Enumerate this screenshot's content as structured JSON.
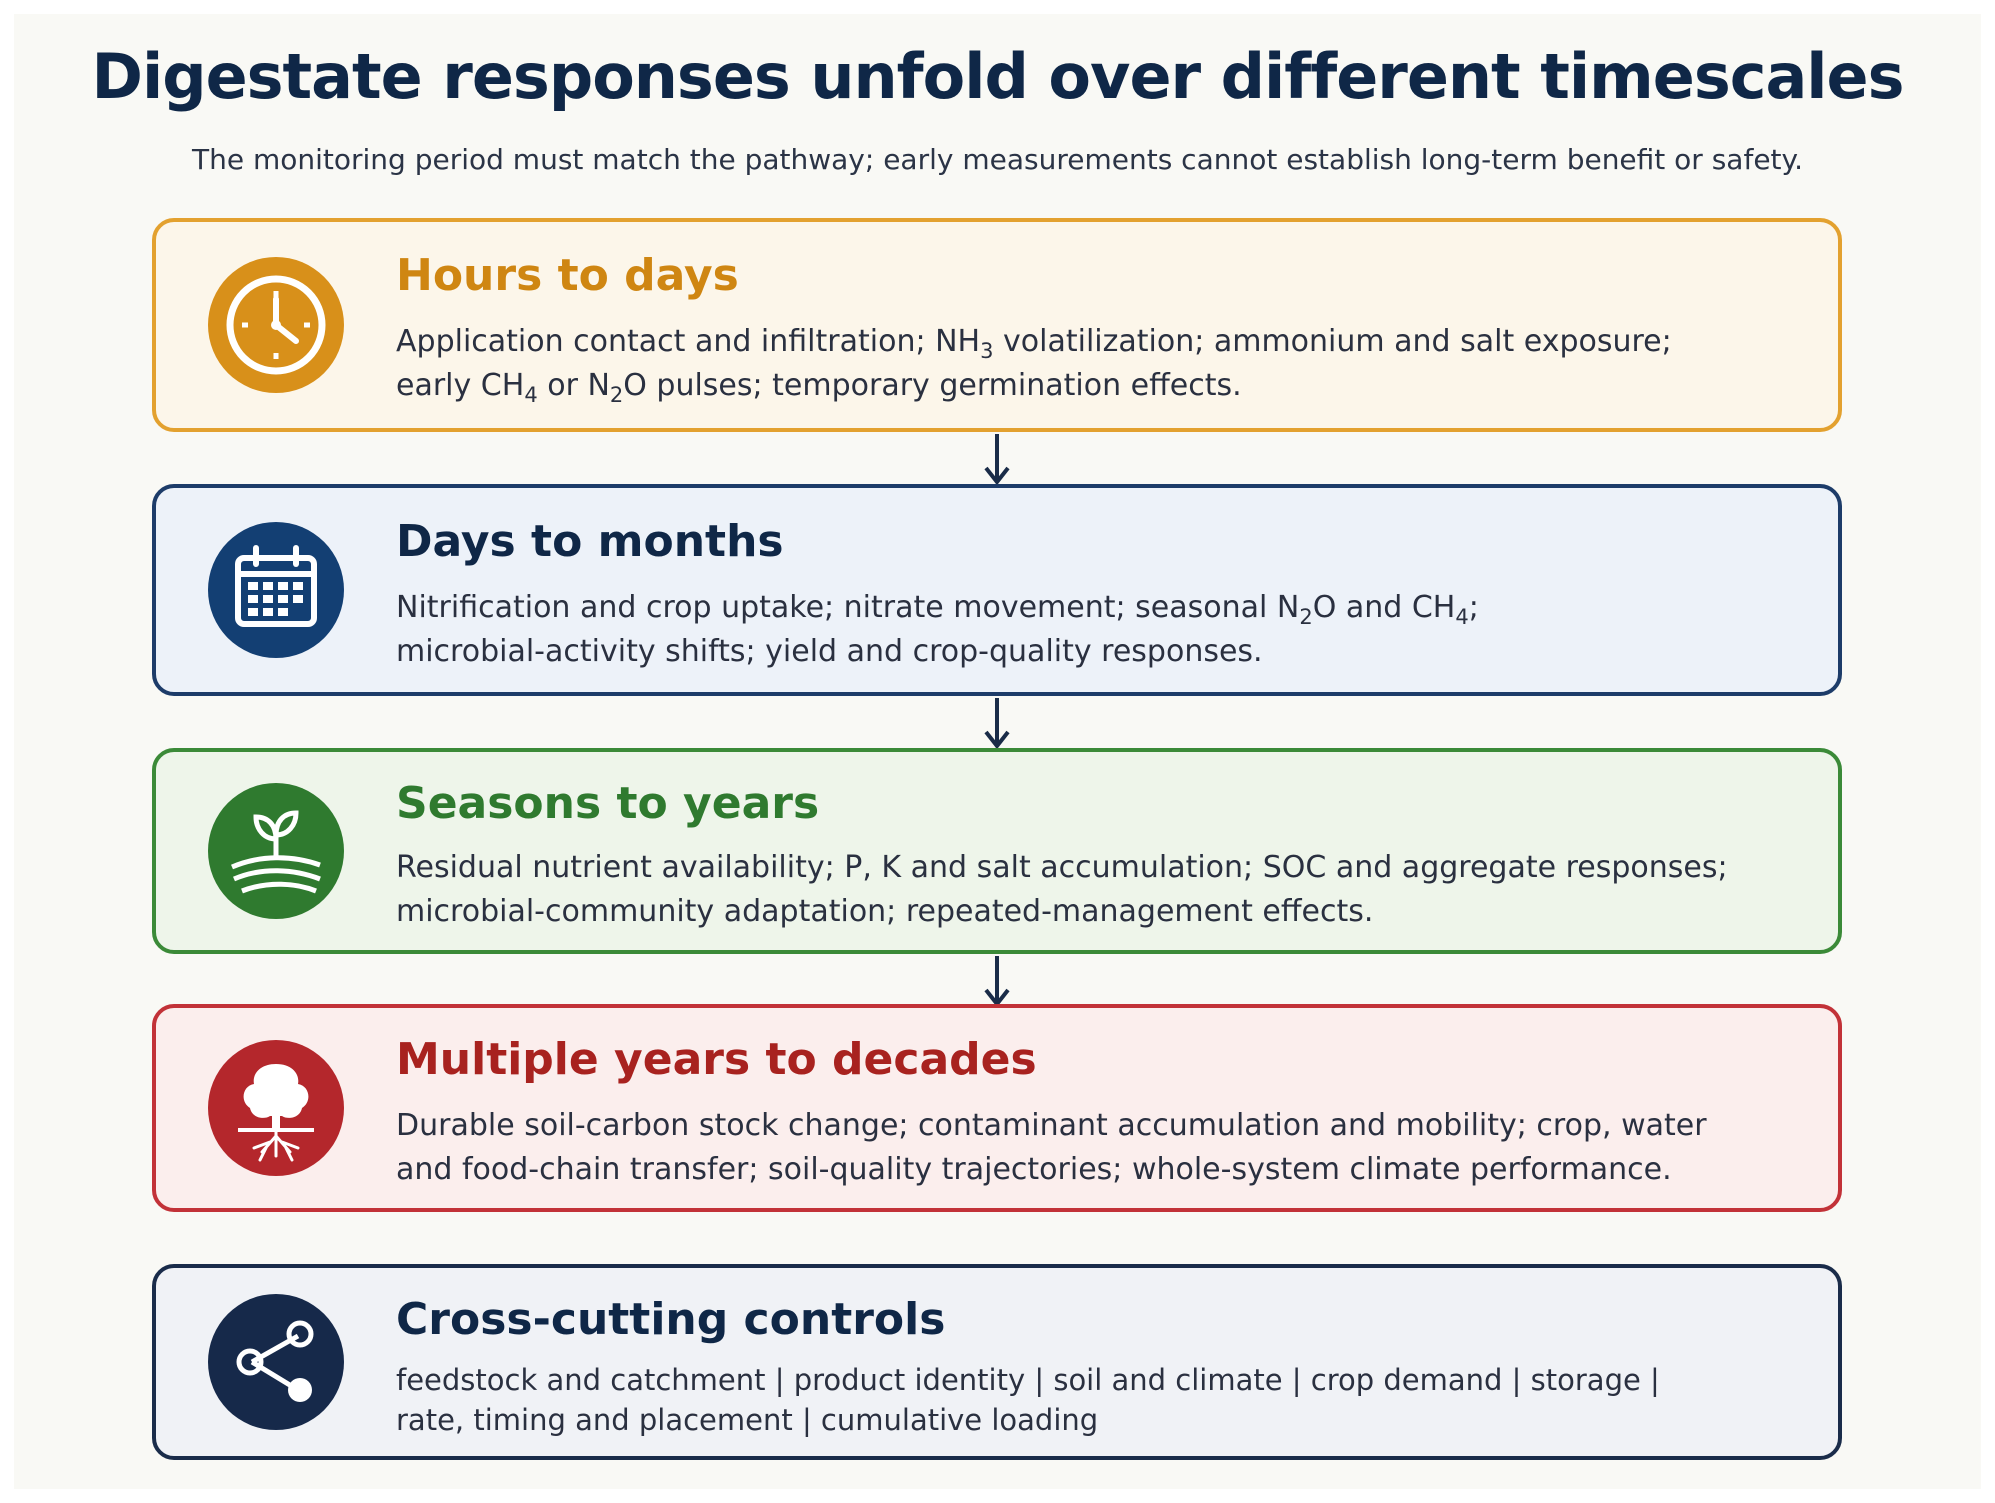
{
  "title": "Digestate responses unfold over different timescales",
  "subtitle": "The monitoring period must match the pathway; early measurements cannot establish long-term benefit or safety.",
  "cards": [
    {
      "heading": "Hours to days",
      "icon": "clock-icon",
      "accent": "#d8901a",
      "lines": [
        [
          "Application contact and infiltration; NH",
          "3",
          " volatilization; ammonium and salt exposure;"
        ],
        [
          "early CH",
          "4",
          " or N",
          "2",
          "O pulses; temporary germination effects."
        ]
      ]
    },
    {
      "heading": "Days to months",
      "icon": "calendar-icon",
      "accent": "#133f73",
      "lines": [
        [
          "Nitrification and crop uptake; nitrate movement; seasonal N",
          "2",
          "O and CH",
          "4",
          ";"
        ],
        [
          "microbial-activity shifts; yield and crop-quality responses."
        ]
      ]
    },
    {
      "heading": "Seasons to years",
      "icon": "seedling-icon",
      "accent": "#2f7a2f",
      "lines": [
        [
          "Residual nutrient availability; P, K and salt accumulation; SOC and aggregate responses;"
        ],
        [
          "microbial-community adaptation; repeated-management effects."
        ]
      ]
    },
    {
      "heading": "Multiple years to decades",
      "icon": "tree-roots-icon",
      "accent": "#b4272c",
      "lines": [
        [
          "Durable soil-carbon stock change; contaminant accumulation and mobility; crop, water"
        ],
        [
          "and food-chain transfer; soil-quality trajectories; whole-system climate performance."
        ]
      ]
    },
    {
      "heading": "Cross-cutting controls",
      "icon": "share-nodes-icon",
      "accent": "#16294a",
      "lines": [
        [
          "feedstock and catchment | product identity | soil and climate | crop demand | storage |"
        ],
        [
          "rate, timing and placement | cumulative loading"
        ]
      ]
    }
  ]
}
